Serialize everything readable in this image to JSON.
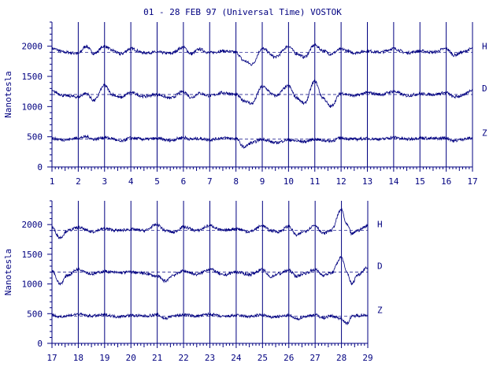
{
  "chart_data": [
    {
      "type": "line",
      "title": "01 - 28 FEB 97 (Universal Time) VOSTOK",
      "ylabel": "Nanotesla",
      "xlabel": "",
      "x_range": [
        1,
        17
      ],
      "x_ticks": [
        1,
        2,
        3,
        4,
        5,
        6,
        7,
        8,
        9,
        10,
        11,
        12,
        13,
        14,
        15,
        16,
        17
      ],
      "x_unit": "day",
      "ylim": [
        0,
        2400
      ],
      "y_ticks": [
        0,
        500,
        1000,
        1500,
        2000
      ],
      "grid": "vertical lines at each day",
      "series": [
        {
          "name": "H",
          "baseline": 1900,
          "x": [
            1,
            1.5,
            2,
            2.3,
            2.6,
            3,
            3.3,
            3.6,
            4,
            4.5,
            5,
            5.5,
            6,
            6.3,
            6.6,
            7,
            7.5,
            8,
            8.3,
            8.6,
            9,
            9.5,
            10,
            10.3,
            10.6,
            11,
            11.3,
            11.6,
            12,
            12.5,
            13,
            13.5,
            14,
            14.5,
            15,
            15.5,
            16,
            16.3,
            16.6,
            17
          ],
          "y": [
            1960,
            1900,
            1880,
            2000,
            1880,
            2000,
            1930,
            1870,
            1960,
            1890,
            1900,
            1880,
            1980,
            1870,
            1950,
            1890,
            1920,
            1900,
            1760,
            1700,
            1960,
            1820,
            2000,
            1880,
            1820,
            2020,
            1930,
            1870,
            1950,
            1890,
            1920,
            1900,
            1960,
            1890,
            1920,
            1900,
            1960,
            1850,
            1900,
            1960
          ]
        },
        {
          "name": "D",
          "baseline": 1200,
          "x": [
            1,
            1.5,
            2,
            2.3,
            2.6,
            3,
            3.3,
            3.6,
            4,
            4.5,
            5,
            5.5,
            6,
            6.3,
            6.6,
            7,
            7.5,
            8,
            8.3,
            8.6,
            9,
            9.5,
            10,
            10.3,
            10.6,
            11,
            11.3,
            11.6,
            12,
            12.5,
            13,
            13.5,
            14,
            14.5,
            15,
            15.5,
            16,
            16.3,
            16.6,
            17
          ],
          "y": [
            1250,
            1180,
            1160,
            1220,
            1100,
            1350,
            1200,
            1150,
            1230,
            1170,
            1200,
            1140,
            1250,
            1150,
            1220,
            1180,
            1230,
            1200,
            1100,
            1050,
            1330,
            1180,
            1340,
            1150,
            1050,
            1420,
            1150,
            1000,
            1220,
            1180,
            1230,
            1200,
            1250,
            1180,
            1210,
            1200,
            1230,
            1160,
            1180,
            1280
          ]
        },
        {
          "name": "Z",
          "baseline": 460,
          "x": [
            1,
            1.5,
            2,
            2.3,
            2.6,
            3,
            3.3,
            3.6,
            4,
            4.5,
            5,
            5.5,
            6,
            6.3,
            6.6,
            7,
            7.5,
            8,
            8.3,
            8.6,
            9,
            9.5,
            10,
            10.3,
            10.6,
            11,
            11.3,
            11.6,
            12,
            12.5,
            13,
            13.5,
            14,
            14.5,
            15,
            15.5,
            16,
            16.3,
            16.6,
            17
          ],
          "y": [
            470,
            450,
            480,
            500,
            460,
            490,
            470,
            420,
            480,
            460,
            470,
            440,
            490,
            460,
            470,
            450,
            480,
            470,
            330,
            400,
            460,
            400,
            450,
            430,
            420,
            460,
            440,
            430,
            480,
            460,
            470,
            460,
            490,
            460,
            480,
            470,
            480,
            430,
            460,
            480
          ]
        }
      ],
      "series_labels": [
        "H",
        "D",
        "Z"
      ]
    },
    {
      "type": "line",
      "title": "",
      "ylabel": "Nanotesla",
      "xlabel": "",
      "x_range": [
        17,
        29
      ],
      "x_ticks": [
        17,
        18,
        19,
        20,
        21,
        22,
        23,
        24,
        25,
        26,
        27,
        28,
        29
      ],
      "x_unit": "day",
      "ylim": [
        0,
        2400
      ],
      "y_ticks": [
        0,
        500,
        1000,
        1500,
        2000
      ],
      "grid": "vertical lines at each day",
      "series": [
        {
          "name": "H",
          "baseline": 1900,
          "x": [
            17,
            17.3,
            17.6,
            18,
            18.5,
            19,
            19.5,
            20,
            20.5,
            21,
            21.3,
            21.6,
            22,
            22.5,
            23,
            23.5,
            24,
            24.5,
            25,
            25.3,
            25.6,
            26,
            26.3,
            26.6,
            27,
            27.3,
            27.6,
            28,
            28.2,
            28.4,
            28.6,
            29
          ],
          "y": [
            1950,
            1780,
            1900,
            1950,
            1880,
            1930,
            1900,
            1920,
            1900,
            2000,
            1900,
            1870,
            1960,
            1900,
            1980,
            1900,
            1930,
            1880,
            1980,
            1900,
            1880,
            1970,
            1820,
            1890,
            1990,
            1850,
            1900,
            2250,
            2000,
            1840,
            1900,
            1980
          ]
        },
        {
          "name": "D",
          "baseline": 1200,
          "x": [
            17,
            17.3,
            17.6,
            18,
            18.5,
            19,
            19.5,
            20,
            20.5,
            21,
            21.3,
            21.6,
            22,
            22.5,
            23,
            23.5,
            24,
            24.5,
            25,
            25.3,
            25.6,
            26,
            26.3,
            26.6,
            27,
            27.3,
            27.6,
            28,
            28.2,
            28.4,
            28.6,
            29
          ],
          "y": [
            1230,
            1000,
            1150,
            1250,
            1170,
            1210,
            1190,
            1200,
            1180,
            1130,
            1050,
            1150,
            1220,
            1160,
            1250,
            1150,
            1200,
            1160,
            1240,
            1120,
            1170,
            1230,
            1130,
            1180,
            1240,
            1150,
            1180,
            1450,
            1200,
            1000,
            1150,
            1280
          ]
        },
        {
          "name": "Z",
          "baseline": 460,
          "x": [
            17,
            17.3,
            17.6,
            18,
            18.5,
            19,
            19.5,
            20,
            20.5,
            21,
            21.3,
            21.6,
            22,
            22.5,
            23,
            23.5,
            24,
            24.5,
            25,
            25.3,
            25.6,
            26,
            26.3,
            26.6,
            27,
            27.3,
            27.6,
            28,
            28.2,
            28.4,
            28.6,
            29
          ],
          "y": [
            480,
            440,
            470,
            490,
            460,
            480,
            450,
            470,
            460,
            480,
            420,
            460,
            480,
            460,
            490,
            450,
            470,
            450,
            480,
            440,
            450,
            470,
            410,
            450,
            480,
            430,
            460,
            420,
            330,
            450,
            470,
            480
          ]
        }
      ],
      "series_labels": [
        "H",
        "D",
        "Z"
      ]
    }
  ]
}
